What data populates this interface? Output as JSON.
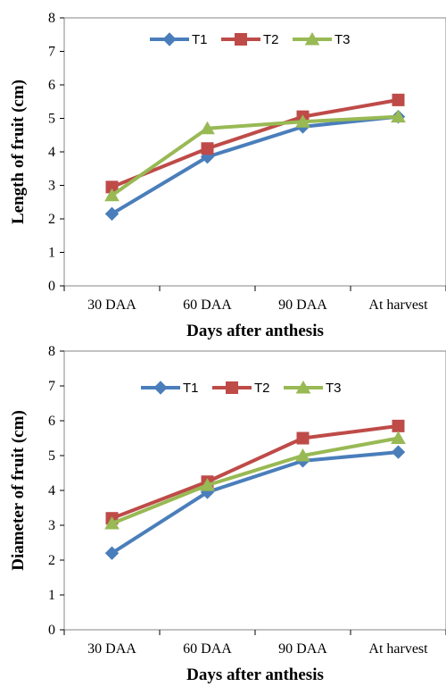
{
  "chart_data": [
    {
      "type": "line",
      "title": "",
      "xlabel": "Days after anthesis",
      "ylabel": "Length of fruit (cm)",
      "categories": [
        "30 DAA",
        "60 DAA",
        "90 DAA",
        "At harvest"
      ],
      "ylim": [
        0,
        8
      ],
      "yticks": [
        "0",
        "1",
        "2",
        "3",
        "4",
        "5",
        "6",
        "7",
        "8"
      ],
      "grid": false,
      "legend_position": "top-center",
      "series": [
        {
          "name": "T1",
          "values": [
            2.15,
            3.85,
            4.75,
            5.05
          ],
          "color": "#4a7ebb",
          "marker": "diamond"
        },
        {
          "name": "T2",
          "values": [
            2.95,
            4.1,
            5.05,
            5.55
          ],
          "color": "#be4b48",
          "marker": "square"
        },
        {
          "name": "T3",
          "values": [
            2.7,
            4.7,
            4.9,
            5.05
          ],
          "color": "#98b954",
          "marker": "triangle"
        }
      ]
    },
    {
      "type": "line",
      "title": "",
      "xlabel": "Days after anthesis",
      "ylabel": "Diameter of fruit (cm)",
      "categories": [
        "30 DAA",
        "60 DAA",
        "90 DAA",
        "At harvest"
      ],
      "ylim": [
        0,
        8
      ],
      "yticks": [
        "0",
        "1",
        "2",
        "3",
        "4",
        "5",
        "6",
        "7",
        "8"
      ],
      "grid": false,
      "legend_position": "top-center",
      "series": [
        {
          "name": "T1",
          "values": [
            2.2,
            3.95,
            4.85,
            5.1
          ],
          "color": "#4a7ebb",
          "marker": "diamond"
        },
        {
          "name": "T2",
          "values": [
            3.2,
            4.25,
            5.5,
            5.85
          ],
          "color": "#be4b48",
          "marker": "square"
        },
        {
          "name": "T3",
          "values": [
            3.05,
            4.15,
            5.0,
            5.5
          ],
          "color": "#98b954",
          "marker": "triangle"
        }
      ]
    }
  ]
}
